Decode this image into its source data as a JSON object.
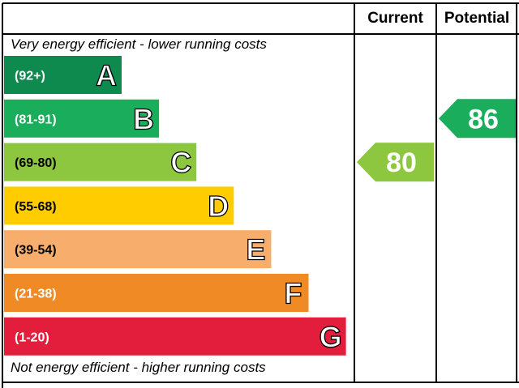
{
  "header": {
    "current_label": "Current",
    "potential_label": "Potential"
  },
  "notes": {
    "top": "Very energy efficient - lower running costs",
    "bottom": "Not energy efficient - higher running costs"
  },
  "chart_data": {
    "type": "bar",
    "bands": [
      {
        "letter": "A",
        "range": "(92+)",
        "color": "#0e8a4f"
      },
      {
        "letter": "B",
        "range": "(81-91)",
        "color": "#1aae5c"
      },
      {
        "letter": "C",
        "range": "(69-80)",
        "color": "#8dc63f"
      },
      {
        "letter": "D",
        "range": "(55-68)",
        "color": "#ffcc00"
      },
      {
        "letter": "E",
        "range": "(39-54)",
        "color": "#f7ad6b"
      },
      {
        "letter": "F",
        "range": "(21-38)",
        "color": "#f08a24"
      },
      {
        "letter": "G",
        "range": "(1-20)",
        "color": "#e31d3c"
      }
    ],
    "current": {
      "value": 80,
      "band": "C",
      "color": "#8dc63f"
    },
    "potential": {
      "value": 86,
      "band": "B",
      "color": "#1aae5c"
    }
  }
}
